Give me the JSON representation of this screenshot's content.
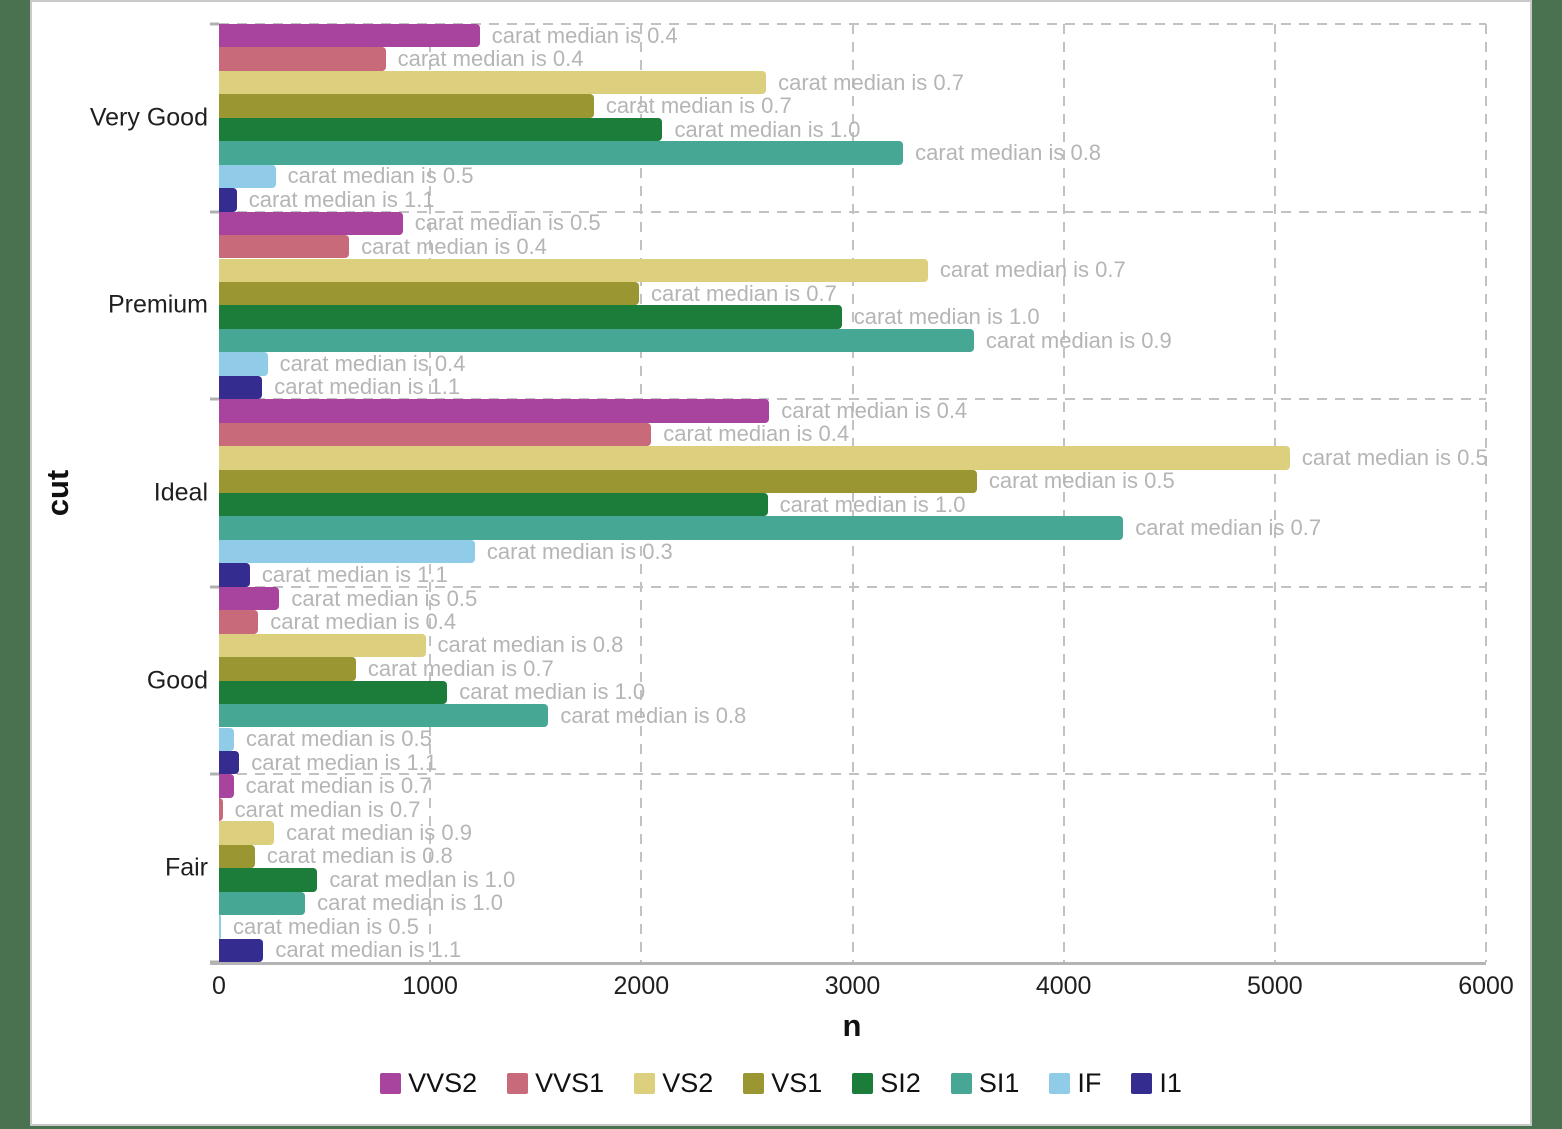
{
  "colors": {
    "frame_background": "#4a7150",
    "panel_border": "#c9c9c9",
    "annotation_text": "#b5b5b5",
    "gridline": "#c2c2c2",
    "axis_line": "#b4b4b4",
    "tick_text": "#1f1f1f",
    "series": {
      "VVS2": "#a8439e",
      "VVS1": "#c86a7a",
      "VS2": "#dccf7d",
      "VS1": "#9a9632",
      "SI2": "#1c7c39",
      "SI1": "#47a795",
      "IF": "#90cce8",
      "I1": "#352c90"
    }
  },
  "chart_data": {
    "type": "bar",
    "orientation": "horizontal",
    "title": "",
    "xlabel": "n",
    "ylabel": "cut",
    "xlim": [
      0,
      6000
    ],
    "xticks": [
      "0",
      "1000",
      "2000",
      "3000",
      "4000",
      "5000",
      "6000"
    ],
    "grid": "dashed",
    "legend_position": "bottom",
    "legend_entries": [
      "VVS2",
      "VVS1",
      "VS2",
      "VS1",
      "SI2",
      "SI1",
      "IF",
      "I1"
    ],
    "clarity_order": [
      "VVS2",
      "VVS1",
      "VS2",
      "VS1",
      "SI2",
      "SI1",
      "IF",
      "I1"
    ],
    "groups": [
      {
        "cut": "Very Good",
        "bars": [
          {
            "clarity": "VVS2",
            "n": 1235,
            "carat_median": 0.4,
            "label": "carat median is 0.4"
          },
          {
            "clarity": "VVS1",
            "n": 789,
            "carat_median": 0.4,
            "label": "carat median is 0.4"
          },
          {
            "clarity": "VS2",
            "n": 2591,
            "carat_median": 0.7,
            "label": "carat median is 0.7"
          },
          {
            "clarity": "VS1",
            "n": 1775,
            "carat_median": 0.7,
            "label": "carat median is 0.7"
          },
          {
            "clarity": "SI2",
            "n": 2100,
            "carat_median": 1.0,
            "label": "carat median is 1.0"
          },
          {
            "clarity": "SI1",
            "n": 3240,
            "carat_median": 0.8,
            "label": "carat median is 0.8"
          },
          {
            "clarity": "IF",
            "n": 268,
            "carat_median": 0.5,
            "label": "carat median is 0.5"
          },
          {
            "clarity": "I1",
            "n": 84,
            "carat_median": 1.1,
            "label": "carat median is 1.1"
          }
        ]
      },
      {
        "cut": "Premium",
        "bars": [
          {
            "clarity": "VVS2",
            "n": 870,
            "carat_median": 0.5,
            "label": "carat median is 0.5"
          },
          {
            "clarity": "VVS1",
            "n": 616,
            "carat_median": 0.4,
            "label": "carat median is 0.4"
          },
          {
            "clarity": "VS2",
            "n": 3357,
            "carat_median": 0.7,
            "label": "carat median is 0.7"
          },
          {
            "clarity": "VS1",
            "n": 1989,
            "carat_median": 0.7,
            "label": "carat median is 0.7"
          },
          {
            "clarity": "SI2",
            "n": 2949,
            "carat_median": 1.0,
            "label": "carat median is 1.0"
          },
          {
            "clarity": "SI1",
            "n": 3575,
            "carat_median": 0.9,
            "label": "carat median is 0.9"
          },
          {
            "clarity": "IF",
            "n": 230,
            "carat_median": 0.4,
            "label": "carat median is 0.4"
          },
          {
            "clarity": "I1",
            "n": 205,
            "carat_median": 1.1,
            "label": "carat median is 1.1"
          }
        ]
      },
      {
        "cut": "Ideal",
        "bars": [
          {
            "clarity": "VVS2",
            "n": 2606,
            "carat_median": 0.4,
            "label": "carat median is 0.4"
          },
          {
            "clarity": "VVS1",
            "n": 2047,
            "carat_median": 0.4,
            "label": "carat median is 0.4"
          },
          {
            "clarity": "VS2",
            "n": 5071,
            "carat_median": 0.5,
            "label": "carat median is 0.5"
          },
          {
            "clarity": "VS1",
            "n": 3589,
            "carat_median": 0.5,
            "label": "carat median is 0.5"
          },
          {
            "clarity": "SI2",
            "n": 2598,
            "carat_median": 1.0,
            "label": "carat median is 1.0"
          },
          {
            "clarity": "SI1",
            "n": 4282,
            "carat_median": 0.7,
            "label": "carat median is 0.7"
          },
          {
            "clarity": "IF",
            "n": 1212,
            "carat_median": 0.3,
            "label": "carat median is 0.3"
          },
          {
            "clarity": "I1",
            "n": 146,
            "carat_median": 1.1,
            "label": "carat median is 1.1"
          }
        ]
      },
      {
        "cut": "Good",
        "bars": [
          {
            "clarity": "VVS2",
            "n": 286,
            "carat_median": 0.5,
            "label": "carat median is 0.5"
          },
          {
            "clarity": "VVS1",
            "n": 186,
            "carat_median": 0.4,
            "label": "carat median is 0.4"
          },
          {
            "clarity": "VS2",
            "n": 978,
            "carat_median": 0.8,
            "label": "carat median is 0.8"
          },
          {
            "clarity": "VS1",
            "n": 648,
            "carat_median": 0.7,
            "label": "carat median is 0.7"
          },
          {
            "clarity": "SI2",
            "n": 1081,
            "carat_median": 1.0,
            "label": "carat median is 1.0"
          },
          {
            "clarity": "SI1",
            "n": 1560,
            "carat_median": 0.8,
            "label": "carat median is 0.8"
          },
          {
            "clarity": "IF",
            "n": 71,
            "carat_median": 0.5,
            "label": "carat median is 0.5"
          },
          {
            "clarity": "I1",
            "n": 96,
            "carat_median": 1.1,
            "label": "carat median is 1.1"
          }
        ]
      },
      {
        "cut": "Fair",
        "bars": [
          {
            "clarity": "VVS2",
            "n": 69,
            "carat_median": 0.7,
            "label": "carat median is 0.7"
          },
          {
            "clarity": "VVS1",
            "n": 17,
            "carat_median": 0.7,
            "label": "carat median is 0.7"
          },
          {
            "clarity": "VS2",
            "n": 261,
            "carat_median": 0.9,
            "label": "carat median is 0.9"
          },
          {
            "clarity": "VS1",
            "n": 170,
            "carat_median": 0.8,
            "label": "carat median is 0.8"
          },
          {
            "clarity": "SI2",
            "n": 466,
            "carat_median": 1.0,
            "label": "carat median is 1.0"
          },
          {
            "clarity": "SI1",
            "n": 408,
            "carat_median": 1.0,
            "label": "carat median is 1.0"
          },
          {
            "clarity": "IF",
            "n": 9,
            "carat_median": 0.5,
            "label": "carat median is 0.5"
          },
          {
            "clarity": "I1",
            "n": 210,
            "carat_median": 1.1,
            "label": "carat median is 1.1"
          }
        ]
      }
    ]
  }
}
